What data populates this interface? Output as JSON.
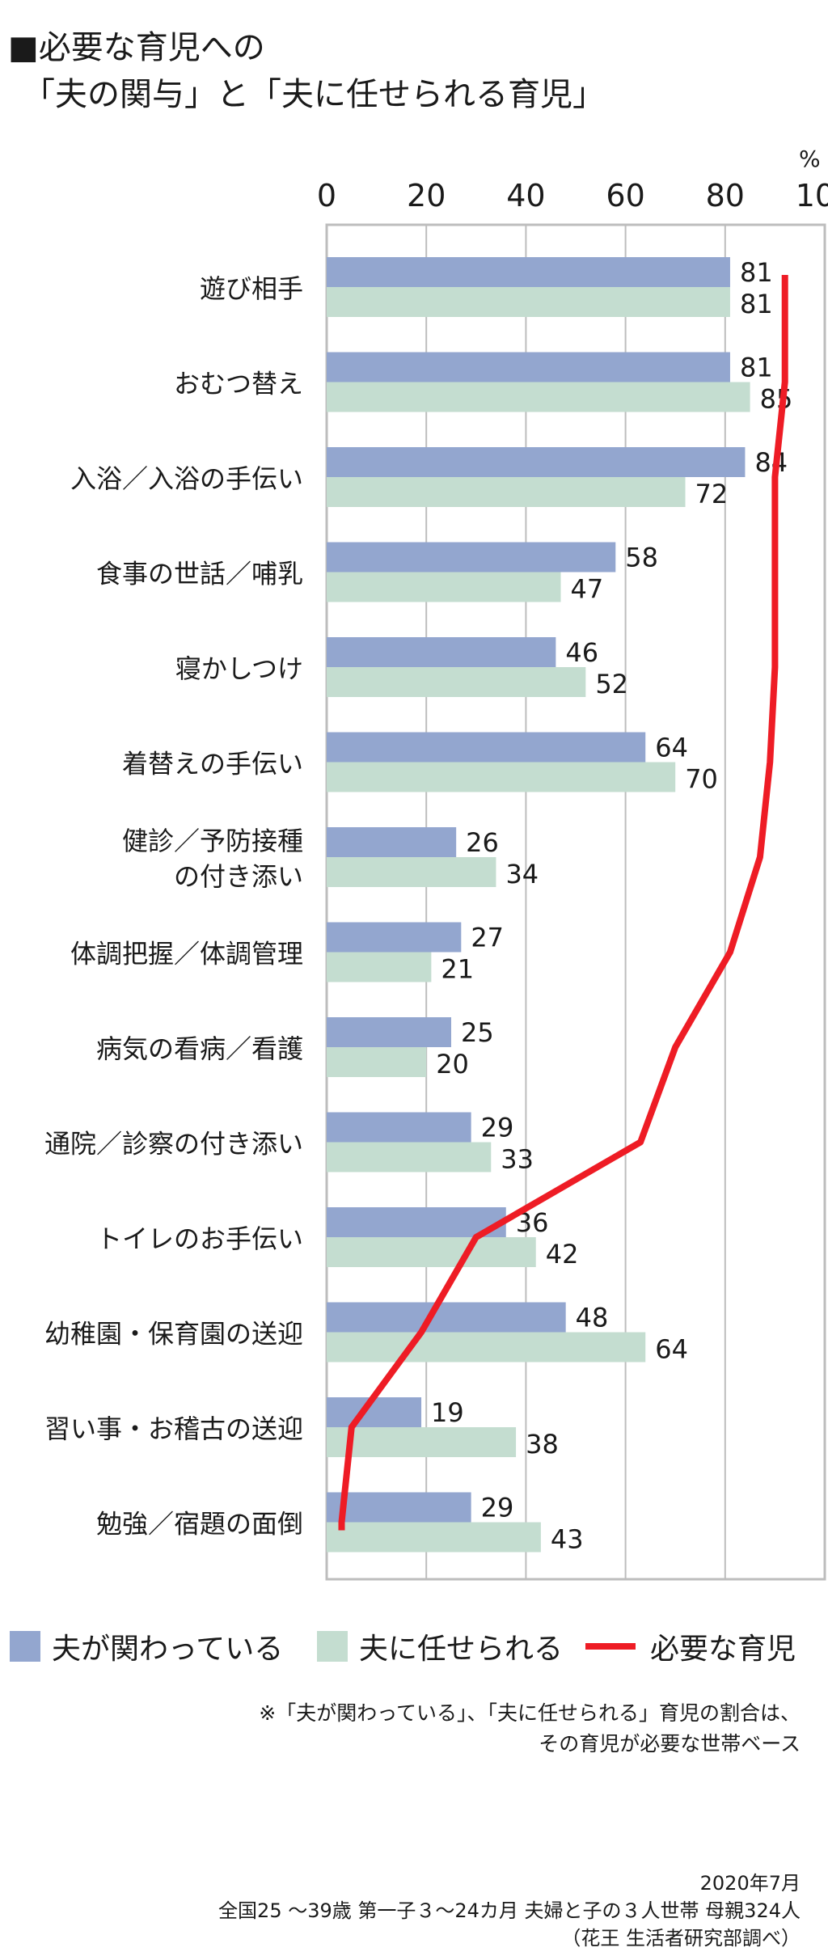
{
  "title": {
    "line1": "■必要な育児への",
    "line2": "「夫の関与」と「夫に任せられる育児」"
  },
  "unit_label": "%",
  "legend": {
    "involved": "夫が関わっている",
    "entrusted": "夫に任せられる",
    "necessary": "必要な育児"
  },
  "footnote": {
    "line1": "※「夫が関わっている」、「夫に任せられる」育児の割合は、",
    "line2": "その育児が必要な世帯ベース"
  },
  "source": {
    "line1": "2020年7月",
    "line2": "全国25 ～39歳 第一子３～24カ月 夫婦と子の３人世帯 母親324人",
    "line3": "（花王 生活者研究部調べ）"
  },
  "colors": {
    "involved": "#93a6cf",
    "entrusted": "#c4ddd0",
    "necessary": "#ee1c25",
    "axis": "#bdbdbd"
  },
  "chart_data": {
    "type": "bar",
    "orientation": "horizontal",
    "xlim": [
      0,
      100
    ],
    "ticks": [
      0,
      20,
      40,
      60,
      80,
      100
    ],
    "grid": true,
    "categories": [
      [
        "遊び相手"
      ],
      [
        "おむつ替え"
      ],
      [
        "入浴／入浴の手伝い"
      ],
      [
        "食事の世話／哺乳"
      ],
      [
        "寝かしつけ"
      ],
      [
        "着替えの手伝い"
      ],
      [
        "健診／予防接種",
        "の付き添い"
      ],
      [
        "体調把握／体調管理"
      ],
      [
        "病気の看病／看護"
      ],
      [
        "通院／診察の付き添い"
      ],
      [
        "トイレのお手伝い"
      ],
      [
        "幼稚園・保育園の送迎"
      ],
      [
        "習い事・お稽古の送迎"
      ],
      [
        "勉強／宿題の面倒"
      ]
    ],
    "series": [
      {
        "name": "夫が関わっている",
        "values": [
          81,
          81,
          84,
          58,
          46,
          64,
          26,
          27,
          25,
          29,
          36,
          48,
          19,
          29
        ]
      },
      {
        "name": "夫に任せられる",
        "values": [
          81,
          85,
          72,
          47,
          52,
          70,
          34,
          21,
          20,
          33,
          42,
          64,
          38,
          43
        ]
      },
      {
        "name": "必要な育児",
        "type": "line",
        "values": [
          92,
          92,
          90,
          90,
          90,
          89,
          87,
          81,
          70,
          63,
          30,
          19,
          5,
          3
        ]
      }
    ]
  }
}
